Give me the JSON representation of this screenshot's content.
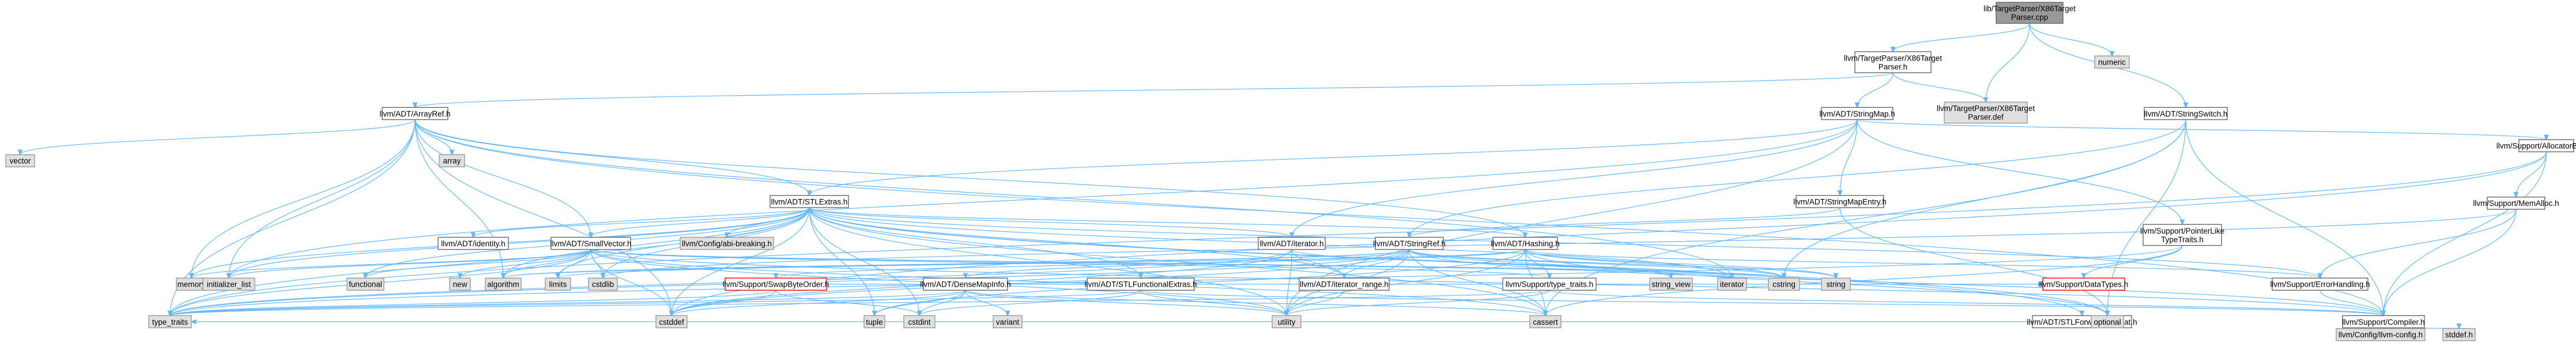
{
  "colors": {
    "root_fill": "#999999",
    "node_fill": "#ffffff",
    "node_stroke": "#666666",
    "system_fill": "#e0e0e0",
    "system_stroke": "#999999",
    "error_stroke": "#ff0000",
    "edge": "#63b8ff",
    "background": "#ffffff"
  },
  "nodes": [
    {
      "id": "n_root",
      "lines": [
        "lib/TargetParser/X86Target",
        "Parser.cpp"
      ],
      "kind": "root"
    },
    {
      "id": "n_x86h",
      "lines": [
        "llvm/TargetParser/X86Target",
        "Parser.h"
      ],
      "kind": "file"
    },
    {
      "id": "n_numeric",
      "lines": [
        "numeric"
      ],
      "kind": "system"
    },
    {
      "id": "n_x86def",
      "lines": [
        "llvm/TargetParser/X86Target",
        "Parser.def"
      ],
      "kind": "system"
    },
    {
      "id": "n_arrayref",
      "lines": [
        "llvm/ADT/ArrayRef.h"
      ],
      "kind": "file"
    },
    {
      "id": "n_stringmap",
      "lines": [
        "llvm/ADT/StringMap.h"
      ],
      "kind": "file"
    },
    {
      "id": "n_stringswitch",
      "lines": [
        "llvm/ADT/StringSwitch.h"
      ],
      "kind": "file"
    },
    {
      "id": "n_allocbase",
      "lines": [
        "llvm/Support/AllocatorBase.h"
      ],
      "kind": "file"
    },
    {
      "id": "n_vector",
      "lines": [
        "vector"
      ],
      "kind": "system"
    },
    {
      "id": "n_array",
      "lines": [
        "array"
      ],
      "kind": "system"
    },
    {
      "id": "n_stlextras",
      "lines": [
        "llvm/ADT/STLExtras.h"
      ],
      "kind": "file"
    },
    {
      "id": "n_smentry",
      "lines": [
        "llvm/ADT/StringMapEntry.h"
      ],
      "kind": "file"
    },
    {
      "id": "n_ptrlike",
      "lines": [
        "llvm/Support/PointerLike",
        "TypeTraits.h"
      ],
      "kind": "file"
    },
    {
      "id": "n_memalloc",
      "lines": [
        "llvm/Support/MemAlloc.h"
      ],
      "kind": "file"
    },
    {
      "id": "n_identity",
      "lines": [
        "llvm/ADT/identity.h"
      ],
      "kind": "file"
    },
    {
      "id": "n_smallvector",
      "lines": [
        "llvm/ADT/SmallVector.h"
      ],
      "kind": "file"
    },
    {
      "id": "n_abibreaking",
      "lines": [
        "llvm/Config/abi-breaking.h"
      ],
      "kind": "system"
    },
    {
      "id": "n_iterator",
      "lines": [
        "llvm/ADT/iterator.h"
      ],
      "kind": "file"
    },
    {
      "id": "n_stringref",
      "lines": [
        "llvm/ADT/StringRef.h"
      ],
      "kind": "file"
    },
    {
      "id": "n_hashing",
      "lines": [
        "llvm/ADT/Hashing.h"
      ],
      "kind": "file"
    },
    {
      "id": "n_datatypes",
      "lines": [
        "llvm/Support/DataTypes.h"
      ],
      "kind": "error"
    },
    {
      "id": "n_errorhandling",
      "lines": [
        "llvm/Support/ErrorHandling.h"
      ],
      "kind": "file"
    },
    {
      "id": "n_memory",
      "lines": [
        "memory"
      ],
      "kind": "system"
    },
    {
      "id": "n_initlist",
      "lines": [
        "initializer_list"
      ],
      "kind": "system"
    },
    {
      "id": "n_functional",
      "lines": [
        "functional"
      ],
      "kind": "system"
    },
    {
      "id": "n_new",
      "lines": [
        "new"
      ],
      "kind": "system"
    },
    {
      "id": "n_algorithm",
      "lines": [
        "algorithm"
      ],
      "kind": "system"
    },
    {
      "id": "n_limits",
      "lines": [
        "limits"
      ],
      "kind": "system"
    },
    {
      "id": "n_cstdlib",
      "lines": [
        "cstdlib"
      ],
      "kind": "system"
    },
    {
      "id": "n_swapbyte",
      "lines": [
        "llvm/Support/SwapByteOrder.h"
      ],
      "kind": "error"
    },
    {
      "id": "n_densemapinfo",
      "lines": [
        "llvm/ADT/DenseMapInfo.h"
      ],
      "kind": "file"
    },
    {
      "id": "n_stlfunc",
      "lines": [
        "llvm/ADT/STLFunctionalExtras.h"
      ],
      "kind": "file"
    },
    {
      "id": "n_iterrange",
      "lines": [
        "llvm/ADT/iterator_range.h"
      ],
      "kind": "file"
    },
    {
      "id": "n_typetraits_s",
      "lines": [
        "llvm/Support/type_traits.h"
      ],
      "kind": "file"
    },
    {
      "id": "n_stringview",
      "lines": [
        "string_view"
      ],
      "kind": "system"
    },
    {
      "id": "n_iterator_std",
      "lines": [
        "iterator"
      ],
      "kind": "system"
    },
    {
      "id": "n_cstring",
      "lines": [
        "cstring"
      ],
      "kind": "system"
    },
    {
      "id": "n_string",
      "lines": [
        "string"
      ],
      "kind": "system"
    },
    {
      "id": "n_tuple",
      "lines": [
        "tuple"
      ],
      "kind": "system"
    },
    {
      "id": "n_variant",
      "lines": [
        "variant"
      ],
      "kind": "system"
    },
    {
      "id": "n_cstddef",
      "lines": [
        "cstddef"
      ],
      "kind": "system"
    },
    {
      "id": "n_cstdint",
      "lines": [
        "cstdint"
      ],
      "kind": "system"
    },
    {
      "id": "n_utility",
      "lines": [
        "utility"
      ],
      "kind": "system"
    },
    {
      "id": "n_cassert",
      "lines": [
        "cassert"
      ],
      "kind": "system"
    },
    {
      "id": "n_stlfwd",
      "lines": [
        "llvm/ADT/STLForwardCompat.h"
      ],
      "kind": "file"
    },
    {
      "id": "n_compiler",
      "lines": [
        "llvm/Support/Compiler.h"
      ],
      "kind": "file"
    },
    {
      "id": "n_typetraits",
      "lines": [
        "type_traits"
      ],
      "kind": "system"
    },
    {
      "id": "n_optional",
      "lines": [
        "optional"
      ],
      "kind": "system"
    },
    {
      "id": "n_llvmconfig",
      "lines": [
        "llvm/Config/llvm-config.h"
      ],
      "kind": "system"
    },
    {
      "id": "n_stddef",
      "lines": [
        "stddef.h"
      ],
      "kind": "system"
    }
  ],
  "edges": [
    [
      "n_root",
      "n_x86h"
    ],
    [
      "n_root",
      "n_numeric"
    ],
    [
      "n_root",
      "n_x86def"
    ],
    [
      "n_root",
      "n_stringswitch"
    ],
    [
      "n_x86h",
      "n_arrayref"
    ],
    [
      "n_x86h",
      "n_stringmap"
    ],
    [
      "n_x86h",
      "n_x86def"
    ],
    [
      "n_arrayref",
      "n_vector"
    ],
    [
      "n_arrayref",
      "n_array"
    ],
    [
      "n_arrayref",
      "n_stlextras"
    ],
    [
      "n_arrayref",
      "n_smallvector"
    ],
    [
      "n_arrayref",
      "n_hashing"
    ],
    [
      "n_arrayref",
      "n_memory"
    ],
    [
      "n_arrayref",
      "n_initlist"
    ],
    [
      "n_arrayref",
      "n_algorithm"
    ],
    [
      "n_arrayref",
      "n_iterator_std"
    ],
    [
      "n_arrayref",
      "n_cstddef"
    ],
    [
      "n_arrayref",
      "n_typetraits"
    ],
    [
      "n_arrayref",
      "n_compiler"
    ],
    [
      "n_stringmap",
      "n_stlextras"
    ],
    [
      "n_stringmap",
      "n_smentry"
    ],
    [
      "n_stringmap",
      "n_ptrlike"
    ],
    [
      "n_stringmap",
      "n_allocbase"
    ],
    [
      "n_stringmap",
      "n_iterator"
    ],
    [
      "n_stringmap",
      "n_initlist"
    ],
    [
      "n_stringmap",
      "n_utility"
    ],
    [
      "n_stringswitch",
      "n_stringref"
    ],
    [
      "n_stringswitch",
      "n_compiler"
    ],
    [
      "n_stringswitch",
      "n_cassert"
    ],
    [
      "n_stringswitch",
      "n_cstring"
    ],
    [
      "n_stringswitch",
      "n_optional"
    ],
    [
      "n_allocbase",
      "n_memalloc"
    ],
    [
      "n_allocbase",
      "n_compiler"
    ],
    [
      "n_allocbase",
      "n_cstddef"
    ],
    [
      "n_allocbase",
      "n_typetraits"
    ],
    [
      "n_stlextras",
      "n_identity"
    ],
    [
      "n_stlextras",
      "n_smallvector"
    ],
    [
      "n_stlextras",
      "n_abibreaking"
    ],
    [
      "n_stlextras",
      "n_iterator"
    ],
    [
      "n_stlextras",
      "n_hashing"
    ],
    [
      "n_stlextras",
      "n_stlfunc"
    ],
    [
      "n_stlextras",
      "n_stlfwd"
    ],
    [
      "n_stlextras",
      "n_iterrange"
    ],
    [
      "n_stlextras",
      "n_errorhandling"
    ],
    [
      "n_stlextras",
      "n_algorithm"
    ],
    [
      "n_stlextras",
      "n_cassert"
    ],
    [
      "n_stlextras",
      "n_cstddef"
    ],
    [
      "n_stlextras",
      "n_cstdint"
    ],
    [
      "n_stlextras",
      "n_cstdlib"
    ],
    [
      "n_stlextras",
      "n_functional"
    ],
    [
      "n_stlextras",
      "n_initlist"
    ],
    [
      "n_stlextras",
      "n_iterator_std"
    ],
    [
      "n_stlextras",
      "n_limits"
    ],
    [
      "n_stlextras",
      "n_memory"
    ],
    [
      "n_stlextras",
      "n_optional"
    ],
    [
      "n_stlextras",
      "n_tuple"
    ],
    [
      "n_stlextras",
      "n_typetraits"
    ],
    [
      "n_stlextras",
      "n_utility"
    ],
    [
      "n_smentry",
      "n_stringref"
    ],
    [
      "n_smentry",
      "n_optional"
    ],
    [
      "n_ptrlike",
      "n_datatypes"
    ],
    [
      "n_ptrlike",
      "n_cassert"
    ],
    [
      "n_ptrlike",
      "n_typetraits"
    ],
    [
      "n_memalloc",
      "n_compiler"
    ],
    [
      "n_memalloc",
      "n_errorhandling"
    ],
    [
      "n_memalloc",
      "n_cstdlib"
    ],
    [
      "n_smallvector",
      "n_compiler"
    ],
    [
      "n_smallvector",
      "n_typetraits_s"
    ],
    [
      "n_smallvector",
      "n_algorithm"
    ],
    [
      "n_smallvector",
      "n_cassert"
    ],
    [
      "n_smallvector",
      "n_cstddef"
    ],
    [
      "n_smallvector",
      "n_cstdlib"
    ],
    [
      "n_smallvector",
      "n_cstring"
    ],
    [
      "n_smallvector",
      "n_functional"
    ],
    [
      "n_smallvector",
      "n_initlist"
    ],
    [
      "n_smallvector",
      "n_iterator_std"
    ],
    [
      "n_smallvector",
      "n_limits"
    ],
    [
      "n_smallvector",
      "n_memory"
    ],
    [
      "n_smallvector",
      "n_new"
    ],
    [
      "n_smallvector",
      "n_typetraits"
    ],
    [
      "n_smallvector",
      "n_utility"
    ],
    [
      "n_iterator",
      "n_iterrange"
    ],
    [
      "n_iterator",
      "n_cstddef"
    ],
    [
      "n_iterator",
      "n_iterator_std"
    ],
    [
      "n_iterator",
      "n_typetraits"
    ],
    [
      "n_iterator",
      "n_utility"
    ],
    [
      "n_stringref",
      "n_densemapinfo"
    ],
    [
      "n_stringref",
      "n_iterrange"
    ],
    [
      "n_stringref",
      "n_compiler"
    ],
    [
      "n_stringref",
      "n_algorithm"
    ],
    [
      "n_stringref",
      "n_cassert"
    ],
    [
      "n_stringref",
      "n_cstddef"
    ],
    [
      "n_stringref",
      "n_cstring"
    ],
    [
      "n_stringref",
      "n_limits"
    ],
    [
      "n_stringref",
      "n_string"
    ],
    [
      "n_stringref",
      "n_stringview"
    ],
    [
      "n_stringref",
      "n_typetraits"
    ],
    [
      "n_stringref",
      "n_utility"
    ],
    [
      "n_hashing",
      "n_errorhandling"
    ],
    [
      "n_hashing",
      "n_swapbyte"
    ],
    [
      "n_hashing",
      "n_typetraits_s"
    ],
    [
      "n_hashing",
      "n_algorithm"
    ],
    [
      "n_hashing",
      "n_cassert"
    ],
    [
      "n_hashing",
      "n_cstring"
    ],
    [
      "n_hashing",
      "n_optional"
    ],
    [
      "n_hashing",
      "n_string"
    ],
    [
      "n_hashing",
      "n_tuple"
    ],
    [
      "n_hashing",
      "n_utility"
    ],
    [
      "n_errorhandling",
      "n_compiler"
    ],
    [
      "n_swapbyte",
      "n_datatypes"
    ],
    [
      "n_swapbyte",
      "n_cstddef"
    ],
    [
      "n_swapbyte",
      "n_cstdint"
    ],
    [
      "n_swapbyte",
      "n_typetraits"
    ],
    [
      "n_densemapinfo",
      "n_cassert"
    ],
    [
      "n_densemapinfo",
      "n_cstddef"
    ],
    [
      "n_densemapinfo",
      "n_cstdint"
    ],
    [
      "n_densemapinfo",
      "n_tuple"
    ],
    [
      "n_densemapinfo",
      "n_typetraits"
    ],
    [
      "n_densemapinfo",
      "n_utility"
    ],
    [
      "n_densemapinfo",
      "n_variant"
    ],
    [
      "n_stlfunc",
      "n_compiler"
    ],
    [
      "n_stlfunc",
      "n_cstdint"
    ],
    [
      "n_stlfunc",
      "n_typetraits"
    ],
    [
      "n_stlfunc",
      "n_utility"
    ],
    [
      "n_iterrange",
      "n_utility"
    ],
    [
      "n_typetraits_s",
      "n_compiler"
    ],
    [
      "n_typetraits_s",
      "n_typetraits"
    ],
    [
      "n_typetraits_s",
      "n_utility"
    ],
    [
      "n_stlfwd",
      "n_optional"
    ],
    [
      "n_stlfwd",
      "n_typetraits"
    ],
    [
      "n_compiler",
      "n_llvmconfig"
    ],
    [
      "n_compiler",
      "n_stddef"
    ]
  ]
}
